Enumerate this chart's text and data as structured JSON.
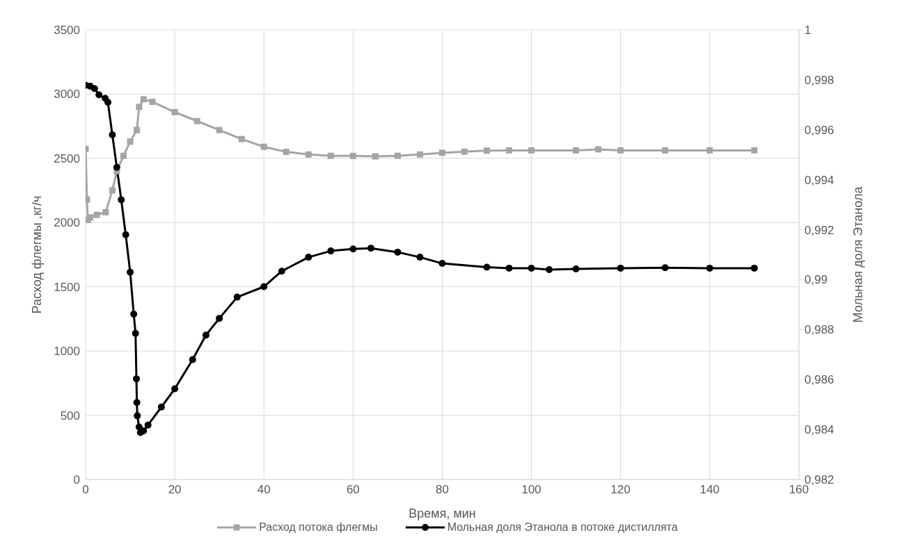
{
  "chart_data": {
    "type": "line",
    "xlabel": "Время, мин",
    "ylabel": "Расход флегмы ,кг/ч",
    "y2label": "Мольная доля Этанола",
    "xlim": [
      0,
      160
    ],
    "xticks": [
      0,
      20,
      40,
      60,
      80,
      100,
      120,
      140,
      160
    ],
    "ylim": [
      0,
      3500
    ],
    "yticks": [
      0,
      500,
      1000,
      1500,
      2000,
      2500,
      3000,
      3500
    ],
    "y2lim": [
      0.982,
      1
    ],
    "y2ticks": [
      {
        "value": 0.982,
        "label": "0,982"
      },
      {
        "value": 0.984,
        "label": "0,984"
      },
      {
        "value": 0.986,
        "label": "0,986"
      },
      {
        "value": 0.988,
        "label": "0,988"
      },
      {
        "value": 0.99,
        "label": "0,99"
      },
      {
        "value": 0.992,
        "label": "0,992"
      },
      {
        "value": 0.994,
        "label": "0,994"
      },
      {
        "value": 0.996,
        "label": "0,996"
      },
      {
        "value": 0.998,
        "label": "0,998"
      },
      1
    ],
    "grid": true,
    "legend": "bottom",
    "line_style": "solid",
    "series": [
      {
        "name": "Расход потока флегмы",
        "color": "#a5a5a5",
        "marker": "square",
        "x": [
          0,
          0.3,
          0.5,
          1,
          2.5,
          4.5,
          6,
          7,
          8.5,
          10,
          11.5,
          12,
          13,
          15,
          20,
          25,
          30,
          35,
          40,
          45,
          50,
          55,
          60,
          65,
          70,
          75,
          80,
          85,
          90,
          95,
          100,
          110,
          115,
          120,
          130,
          140,
          150
        ],
        "values": [
          2573,
          2180,
          2020,
          2040,
          2060,
          2080,
          2250,
          2400,
          2520,
          2630,
          2720,
          2900,
          2960,
          2940,
          2860,
          2790,
          2720,
          2650,
          2590,
          2550,
          2530,
          2520,
          2519,
          2515,
          2520,
          2530,
          2543,
          2552,
          2560,
          2562,
          2562,
          2562,
          2570,
          2562,
          2562,
          2562,
          2562
        ]
      },
      {
        "name": "Мольная доля Этанола в потоке дистиллята",
        "color": "#000000",
        "marker": "circle",
        "axis": "y2",
        "x": [
          0,
          1,
          2,
          3,
          4.4,
          5,
          6,
          7,
          8,
          9,
          10,
          10.8,
          11.2,
          11.4,
          11.5,
          11.6,
          12,
          12.3,
          13,
          14,
          17,
          20,
          24,
          27,
          30,
          34,
          40,
          44,
          50,
          55,
          60,
          64,
          70,
          75,
          80,
          90,
          95,
          100,
          104,
          110,
          120,
          130,
          140,
          150
        ],
        "values": [
          0.99778,
          0.99775,
          0.99765,
          0.9974,
          0.99726,
          0.9971,
          0.9958,
          0.9945,
          0.9932,
          0.9918,
          0.9903,
          0.98862,
          0.98785,
          0.98603,
          0.98508,
          0.98455,
          0.9841,
          0.98388,
          0.98395,
          0.98418,
          0.9849,
          0.98563,
          0.9868,
          0.98778,
          0.98845,
          0.9893,
          0.98972,
          0.99034,
          0.9909,
          0.99115,
          0.99123,
          0.99126,
          0.9911,
          0.9909,
          0.99065,
          0.9905,
          0.99046,
          0.99046,
          0.9904,
          0.99043,
          0.99046,
          0.99048,
          0.99046,
          0.99046
        ]
      }
    ]
  }
}
